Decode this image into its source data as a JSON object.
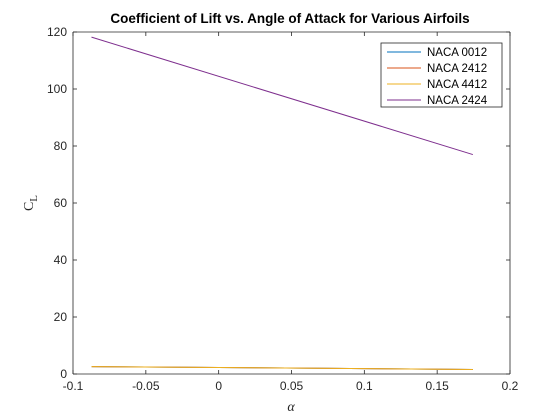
{
  "chart_data": {
    "type": "line",
    "title": "Coefficient of Lift vs. Angle of Attack for Various Airfoils",
    "xlabel": "α",
    "ylabel_main": "C",
    "ylabel_sub": "L",
    "xlim": [
      -0.1,
      0.2
    ],
    "ylim": [
      0,
      120
    ],
    "xticks": [
      -0.1,
      -0.05,
      0,
      0.05,
      0.1,
      0.15,
      0.2
    ],
    "xtick_labels": [
      "-0.1",
      "-0.05",
      "0",
      "0.05",
      "0.1",
      "0.15",
      "0.2"
    ],
    "yticks": [
      0,
      20,
      40,
      60,
      80,
      100,
      120
    ],
    "ytick_labels": [
      "0",
      "20",
      "40",
      "60",
      "80",
      "100",
      "120"
    ],
    "grid": false,
    "legend_position": "top-right",
    "series": [
      {
        "name": "NACA 0012",
        "color": "#0072BD",
        "x": [
          -0.0873,
          0.1745
        ],
        "y": [
          2.6,
          1.6
        ]
      },
      {
        "name": "NACA 2412",
        "color": "#D95319",
        "x": [
          -0.0873,
          0.1745
        ],
        "y": [
          2.6,
          1.6
        ]
      },
      {
        "name": "NACA 4412",
        "color": "#EDB120",
        "x": [
          -0.0873,
          0.1745
        ],
        "y": [
          2.6,
          1.6
        ]
      },
      {
        "name": "NACA 2424",
        "color": "#7E2F8E",
        "x": [
          -0.0873,
          0.1745
        ],
        "y": [
          118.2,
          77.0
        ]
      }
    ]
  }
}
